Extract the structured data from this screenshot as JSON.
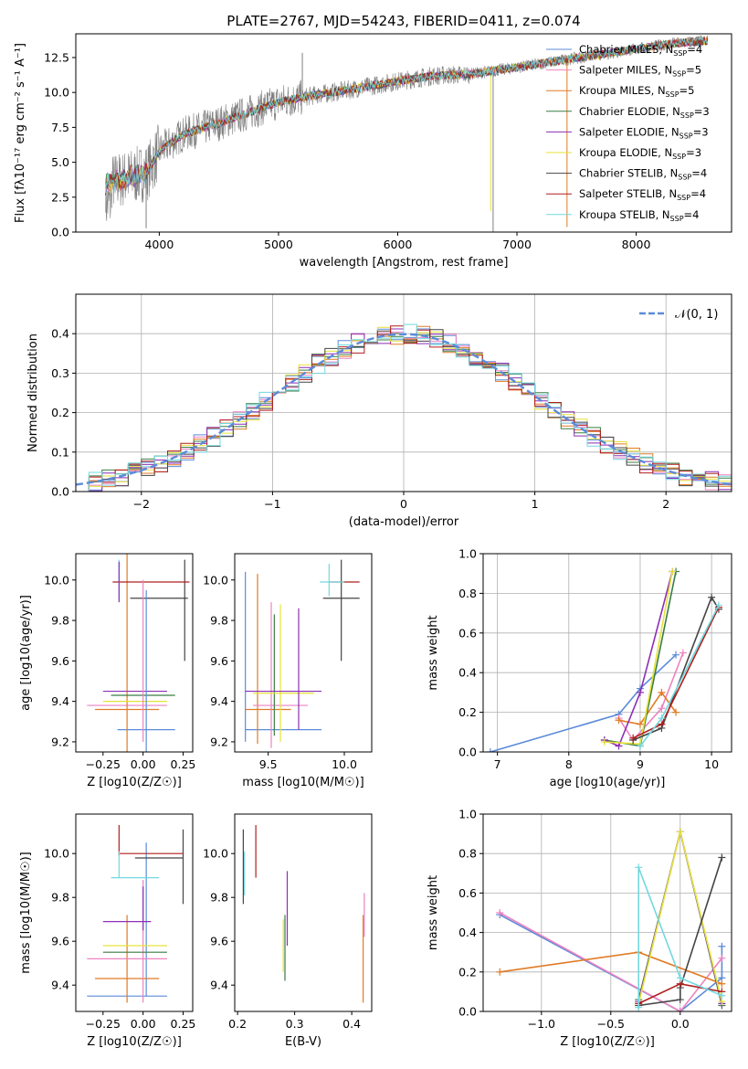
{
  "colors": {
    "Chabrier MILES": "#5b8bd9",
    "Salpeter MILES": "#ee82c0",
    "Kroupa MILES": "#e07b25",
    "Chabrier ELODIE": "#3a7d44",
    "Salpeter ELODIE": "#8b2fb4",
    "Kroupa ELODIE": "#e6e23a",
    "Chabrier STELIB": "#444444",
    "Salpeter STELIB": "#b01e1e",
    "Kroupa STELIB": "#72d8e0",
    "gauss": "#5b8bd9",
    "data": "#808080"
  },
  "chart_data": [
    {
      "type": "line",
      "title": "PLATE=2767, MJD=54243, FIBERID=0411, z=0.074",
      "xlabel": "wavelength [Angstrom, rest frame]",
      "ylabel": "Flux [fλ10⁻¹⁷ erg cm⁻² s⁻¹ A⁻¹]",
      "xlim": [
        3300,
        8800
      ],
      "ylim": [
        0,
        14.2
      ],
      "xticks": [
        "4000",
        "5000",
        "6000",
        "7000",
        "8000"
      ],
      "yticks": [
        "0.0",
        "2.5",
        "5.0",
        "7.5",
        "10.0",
        "12.5"
      ],
      "legend": [
        "Chabrier MILES, N_SSP=4",
        "Salpeter MILES, N_SSP=5",
        "Kroupa MILES, N_SSP=5",
        "Chabrier ELODIE, N_SSP=3",
        "Salpeter ELODIE, N_SSP=3",
        "Kroupa ELODIE, N_SSP=3",
        "Chabrier STELIB, N_SSP=4",
        "Salpeter STELIB, N_SSP=4",
        "Kroupa STELIB, N_SSP=4"
      ],
      "continuum": {
        "x": [
          3550,
          3700,
          3900,
          4000,
          4200,
          4500,
          4800,
          5000,
          5300,
          5600,
          6000,
          6300,
          6600,
          7000,
          7300,
          7600,
          8000,
          8300,
          8600
        ],
        "y": [
          3.5,
          3.8,
          4.3,
          5.8,
          7.0,
          7.8,
          8.7,
          9.3,
          9.8,
          10.2,
          10.8,
          11.2,
          11.3,
          11.8,
          12.2,
          12.6,
          13.1,
          13.5,
          13.7
        ]
      }
    },
    {
      "type": "line",
      "xlabel": "(data-model)/error",
      "ylabel": "Normed distribution",
      "xlim": [
        -2.5,
        2.5
      ],
      "ylim": [
        0,
        0.5
      ],
      "xticks": [
        "−2",
        "−1",
        "0",
        "1",
        "2"
      ],
      "yticks": [
        "0.0",
        "0.1",
        "0.2",
        "0.3",
        "0.4"
      ],
      "legend": "𝒩(0, 1)",
      "grid": true
    },
    {
      "type": "scatter",
      "xlabel": "Z [log10(Z/Z☉)]",
      "ylabel": "age  [log10(age/yr)]",
      "xlim": [
        -0.42,
        0.31
      ],
      "ylim": [
        9.15,
        10.13
      ],
      "xticks": [
        "−0.25",
        "0.00",
        "0.25"
      ],
      "yticks": [
        "9.2",
        "9.4",
        "9.6",
        "9.8",
        "10.0"
      ],
      "points": [
        {
          "m": "Chabrier MILES",
          "x": 0.02,
          "xe": 0.18,
          "y": 9.26,
          "ye": 0.0
        },
        {
          "m": "Salpeter MILES",
          "x": -0.1,
          "xe": 0.25,
          "y": 9.38,
          "ye": 0.0
        },
        {
          "m": "Kroupa MILES",
          "x": -0.1,
          "xe": 0.2,
          "y": 9.36,
          "ye": 0.82
        },
        {
          "m": "Chabrier ELODIE",
          "x": 0.0,
          "xe": 0.2,
          "y": 9.43,
          "ye": 0.0
        },
        {
          "m": "Salpeter ELODIE",
          "x": -0.05,
          "xe": 0.2,
          "y": 9.45,
          "ye": 0.0
        },
        {
          "m": "Kroupa ELODIE",
          "x": -0.05,
          "xe": 0.2,
          "y": 9.4,
          "ye": 0.0
        },
        {
          "m": "Chabrier STELIB",
          "x": 0.1,
          "xe": 0.18,
          "y": 9.91,
          "ye": 0.0
        },
        {
          "m": "Chabrier STELIB",
          "x": 0.26,
          "xe": 0.0,
          "y": 9.85,
          "ye": 0.25
        },
        {
          "m": "Salpeter STELIB",
          "x": 0.05,
          "xe": 0.24,
          "y": 9.99,
          "ye": 0.0
        },
        {
          "m": "Kroupa STELIB",
          "x": -0.15,
          "xe": 0.0,
          "y": 10.0,
          "ye": 0.1
        },
        {
          "m": "Chabrier MILES",
          "x": 0.02,
          "xe": 0.0,
          "y": 9.55,
          "ye": 0.4
        },
        {
          "m": "Salpeter ELODIE",
          "x": -0.15,
          "xe": 0.0,
          "y": 9.99,
          "ye": 0.1
        },
        {
          "m": "Salpeter MILES",
          "x": 0.0,
          "xe": 0.0,
          "y": 9.6,
          "ye": 0.4
        }
      ]
    },
    {
      "type": "scatter",
      "xlabel": "mass [log10(M/M☉)]",
      "ylabel": "",
      "xlim": [
        9.28,
        10.18
      ],
      "ylim": [
        9.15,
        10.13
      ],
      "xticks": [
        "9.5",
        "10.0"
      ],
      "yticks": [
        "9.2",
        "9.4",
        "9.6",
        "9.8",
        "10.0"
      ],
      "points": [
        {
          "m": "Chabrier MILES",
          "x": 9.35,
          "xe": 0.0,
          "y": 9.62,
          "ye": 0.42
        },
        {
          "m": "Chabrier MILES",
          "x": 9.6,
          "xe": 0.25,
          "y": 9.26,
          "ye": 0.0
        },
        {
          "m": "Kroupa MILES",
          "x": 9.43,
          "xe": 0.0,
          "y": 9.61,
          "ye": 0.42
        },
        {
          "m": "Kroupa MILES",
          "x": 9.5,
          "xe": 0.15,
          "y": 9.36,
          "ye": 0.0
        },
        {
          "m": "Salpeter MILES",
          "x": 9.52,
          "xe": 0.0,
          "y": 9.53,
          "ye": 0.36
        },
        {
          "m": "Salpeter MILES",
          "x": 9.58,
          "xe": 0.18,
          "y": 9.38,
          "ye": 0.0
        },
        {
          "m": "Chabrier ELODIE",
          "x": 9.54,
          "xe": 0.0,
          "y": 9.53,
          "ye": 0.3
        },
        {
          "m": "Kroupa ELODIE",
          "x": 9.58,
          "xe": 0.0,
          "y": 9.54,
          "ye": 0.34
        },
        {
          "m": "Kroupa ELODIE",
          "x": 9.6,
          "xe": 0.2,
          "y": 9.44,
          "ye": 0.0
        },
        {
          "m": "Salpeter ELODIE",
          "x": 9.7,
          "xe": 0.0,
          "y": 9.56,
          "ye": 0.3
        },
        {
          "m": "Salpeter ELODIE",
          "x": 9.6,
          "xe": 0.25,
          "y": 9.45,
          "ye": 0.0
        },
        {
          "m": "Chabrier STELIB",
          "x": 9.98,
          "xe": 0.12,
          "y": 9.91,
          "ye": 0.0
        },
        {
          "m": "Chabrier STELIB",
          "x": 9.98,
          "xe": 0.0,
          "y": 9.85,
          "ye": 0.25
        },
        {
          "m": "Salpeter STELIB",
          "x": 10.0,
          "xe": 0.1,
          "y": 9.99,
          "ye": 0.0
        },
        {
          "m": "Kroupa STELIB",
          "x": 9.9,
          "xe": 0.0,
          "y": 10.0,
          "ye": 0.08
        },
        {
          "m": "Kroupa STELIB",
          "x": 9.92,
          "xe": 0.08,
          "y": 9.99,
          "ye": 0.0
        }
      ]
    },
    {
      "type": "line",
      "xlabel": "age  [log10(age/yr)]",
      "ylabel": "mass weight",
      "xlim": [
        6.8,
        10.28
      ],
      "ylim": [
        0,
        1.0
      ],
      "xticks": [
        "7",
        "8",
        "9",
        "10"
      ],
      "yticks": [
        "0.0",
        "0.2",
        "0.4",
        "0.6",
        "0.8",
        "1.0"
      ],
      "grid": true,
      "series": [
        {
          "m": "Chabrier MILES",
          "x": [
            6.9,
            8.7,
            9.0,
            9.5
          ],
          "y": [
            0.0,
            0.19,
            0.32,
            0.49
          ]
        },
        {
          "m": "Salpeter MILES",
          "x": [
            8.7,
            8.9,
            9.3,
            9.6
          ],
          "y": [
            0.17,
            0.06,
            0.22,
            0.5
          ]
        },
        {
          "m": "Kroupa MILES",
          "x": [
            8.7,
            9.0,
            9.3,
            9.5
          ],
          "y": [
            0.16,
            0.14,
            0.3,
            0.2
          ]
        },
        {
          "m": "Chabrier ELODIE",
          "x": [
            8.5,
            9.0,
            9.5
          ],
          "y": [
            0.06,
            0.03,
            0.91
          ]
        },
        {
          "m": "Salpeter ELODIE",
          "x": [
            8.5,
            8.7,
            9.0,
            9.45
          ],
          "y": [
            0.06,
            0.03,
            0.3,
            0.91
          ]
        },
        {
          "m": "Kroupa ELODIE",
          "x": [
            8.5,
            9.0,
            9.45
          ],
          "y": [
            0.05,
            0.04,
            0.91
          ]
        },
        {
          "m": "Chabrier STELIB",
          "x": [
            8.9,
            9.3,
            10.0,
            10.1
          ],
          "y": [
            0.06,
            0.12,
            0.78,
            0.72
          ]
        },
        {
          "m": "Salpeter STELIB",
          "x": [
            8.9,
            9.3,
            10.1
          ],
          "y": [
            0.07,
            0.14,
            0.73
          ]
        },
        {
          "m": "Kroupa STELIB",
          "x": [
            9.0,
            9.3,
            10.1
          ],
          "y": [
            0.03,
            0.17,
            0.74
          ]
        }
      ]
    },
    {
      "type": "scatter",
      "xlabel": "Z [log10(Z/Z☉)]",
      "ylabel": "mass [log10(M/M☉)]",
      "xlim": [
        -0.42,
        0.31
      ],
      "ylim": [
        9.28,
        10.18
      ],
      "xticks": [
        "−0.25",
        "0.00",
        "0.25"
      ],
      "yticks": [
        "9.4",
        "9.6",
        "9.8",
        "10.0"
      ],
      "points": [
        {
          "m": "Chabrier MILES",
          "x": -0.1,
          "xe": 0.25,
          "y": 9.35,
          "ye": 0.0
        },
        {
          "m": "Chabrier MILES",
          "x": 0.02,
          "xe": 0.0,
          "y": 9.7,
          "ye": 0.35
        },
        {
          "m": "Kroupa MILES",
          "x": -0.1,
          "xe": 0.2,
          "y": 9.43,
          "ye": 0.0
        },
        {
          "m": "Kroupa MILES",
          "x": -0.1,
          "xe": 0.0,
          "y": 9.52,
          "ye": 0.2
        },
        {
          "m": "Salpeter MILES",
          "x": -0.1,
          "xe": 0.25,
          "y": 9.52,
          "ye": 0.0
        },
        {
          "m": "Salpeter MILES",
          "x": 0.0,
          "xe": 0.0,
          "y": 9.6,
          "ye": 0.28
        },
        {
          "m": "Chabrier ELODIE",
          "x": -0.05,
          "xe": 0.2,
          "y": 9.55,
          "ye": 0.0
        },
        {
          "m": "Kroupa ELODIE",
          "x": -0.05,
          "xe": 0.2,
          "y": 9.58,
          "ye": 0.0
        },
        {
          "m": "Salpeter ELODIE",
          "x": -0.1,
          "xe": 0.15,
          "y": 9.69,
          "ye": 0.0
        },
        {
          "m": "Salpeter ELODIE",
          "x": 0.0,
          "xe": 0.0,
          "y": 9.75,
          "ye": 0.1
        },
        {
          "m": "Chabrier STELIB",
          "x": 0.1,
          "xe": 0.15,
          "y": 9.98,
          "ye": 0.0
        },
        {
          "m": "Chabrier STELIB",
          "x": 0.25,
          "xe": 0.0,
          "y": 9.94,
          "ye": 0.17
        },
        {
          "m": "Salpeter STELIB",
          "x": 0.05,
          "xe": 0.2,
          "y": 10.0,
          "ye": 0.0
        },
        {
          "m": "Salpeter STELIB",
          "x": -0.15,
          "xe": 0.0,
          "y": 10.06,
          "ye": 0.07
        },
        {
          "m": "Kroupa STELIB",
          "x": -0.05,
          "xe": 0.15,
          "y": 9.89,
          "ye": 0.0
        },
        {
          "m": "Kroupa STELIB",
          "x": -0.15,
          "xe": 0.0,
          "y": 9.95,
          "ye": 0.06
        }
      ]
    },
    {
      "type": "scatter",
      "xlabel": "E(B-V)",
      "ylabel": "",
      "xlim": [
        0.195,
        0.435
      ],
      "ylim": [
        9.28,
        10.18
      ],
      "xticks": [
        "0.2",
        "0.3",
        "0.4"
      ],
      "yticks": [
        "9.4",
        "9.6",
        "9.8",
        "10.0"
      ],
      "points": [
        {
          "m": "Chabrier STELIB",
          "x": 0.21,
          "xe": 0.0,
          "y": 9.94,
          "ye": 0.17
        },
        {
          "m": "Kroupa STELIB",
          "x": 0.212,
          "xe": 0.0,
          "y": 9.91,
          "ye": 0.1
        },
        {
          "m": "Salpeter STELIB",
          "x": 0.232,
          "xe": 0.0,
          "y": 10.01,
          "ye": 0.12
        },
        {
          "m": "Chabrier ELODIE",
          "x": 0.283,
          "xe": 0.0,
          "y": 9.57,
          "ye": 0.15
        },
        {
          "m": "Kroupa ELODIE",
          "x": 0.28,
          "xe": 0.0,
          "y": 9.58,
          "ye": 0.12
        },
        {
          "m": "Salpeter ELODIE",
          "x": 0.287,
          "xe": 0.0,
          "y": 9.75,
          "ye": 0.17
        },
        {
          "m": "Kroupa MILES",
          "x": 0.42,
          "xe": 0.0,
          "y": 9.52,
          "ye": 0.2
        },
        {
          "m": "Salpeter MILES",
          "x": 0.422,
          "xe": 0.0,
          "y": 9.72,
          "ye": 0.1
        }
      ]
    },
    {
      "type": "line",
      "xlabel": "Z [log10(Z/Z☉)]",
      "ylabel": "mass weight",
      "xlim": [
        -1.42,
        0.37
      ],
      "ylim": [
        0,
        1.0
      ],
      "xticks": [
        "−1.0",
        "−0.5",
        "0.0"
      ],
      "yticks": [
        "0.0",
        "0.2",
        "0.4",
        "0.6",
        "0.8",
        "1.0"
      ],
      "grid": true,
      "series": [
        {
          "m": "Chabrier MILES",
          "x": [
            -1.3,
            0.0,
            0.3,
            0.3
          ],
          "y": [
            0.49,
            0.0,
            0.17,
            0.33
          ]
        },
        {
          "m": "Salpeter MILES",
          "x": [
            -1.3,
            0.0,
            0.3
          ],
          "y": [
            0.5,
            0.0,
            0.27
          ]
        },
        {
          "m": "Kroupa MILES",
          "x": [
            -1.3,
            -0.3,
            0.3
          ],
          "y": [
            0.2,
            0.3,
            0.14
          ]
        },
        {
          "m": "Chabrier ELODIE",
          "x": [
            -0.3,
            0.0,
            0.3
          ],
          "y": [
            0.06,
            0.91,
            0.03
          ]
        },
        {
          "m": "Salpeter ELODIE",
          "x": [
            -0.3,
            0.0,
            0.3
          ],
          "y": [
            0.05,
            0.91,
            0.04
          ]
        },
        {
          "m": "Kroupa ELODIE",
          "x": [
            -0.3,
            0.0,
            0.3
          ],
          "y": [
            0.04,
            0.91,
            0.05
          ]
        },
        {
          "m": "Chabrier STELIB",
          "x": [
            -0.3,
            0.0,
            0.0,
            0.3
          ],
          "y": [
            0.03,
            0.06,
            0.12,
            0.78
          ]
        },
        {
          "m": "Salpeter STELIB",
          "x": [
            -0.3,
            0.0,
            0.3
          ],
          "y": [
            0.04,
            0.14,
            0.1
          ]
        },
        {
          "m": "Kroupa STELIB",
          "x": [
            -0.3,
            -0.3,
            0.0,
            0.3
          ],
          "y": [
            0.02,
            0.73,
            0.17,
            0.08
          ]
        }
      ]
    }
  ]
}
